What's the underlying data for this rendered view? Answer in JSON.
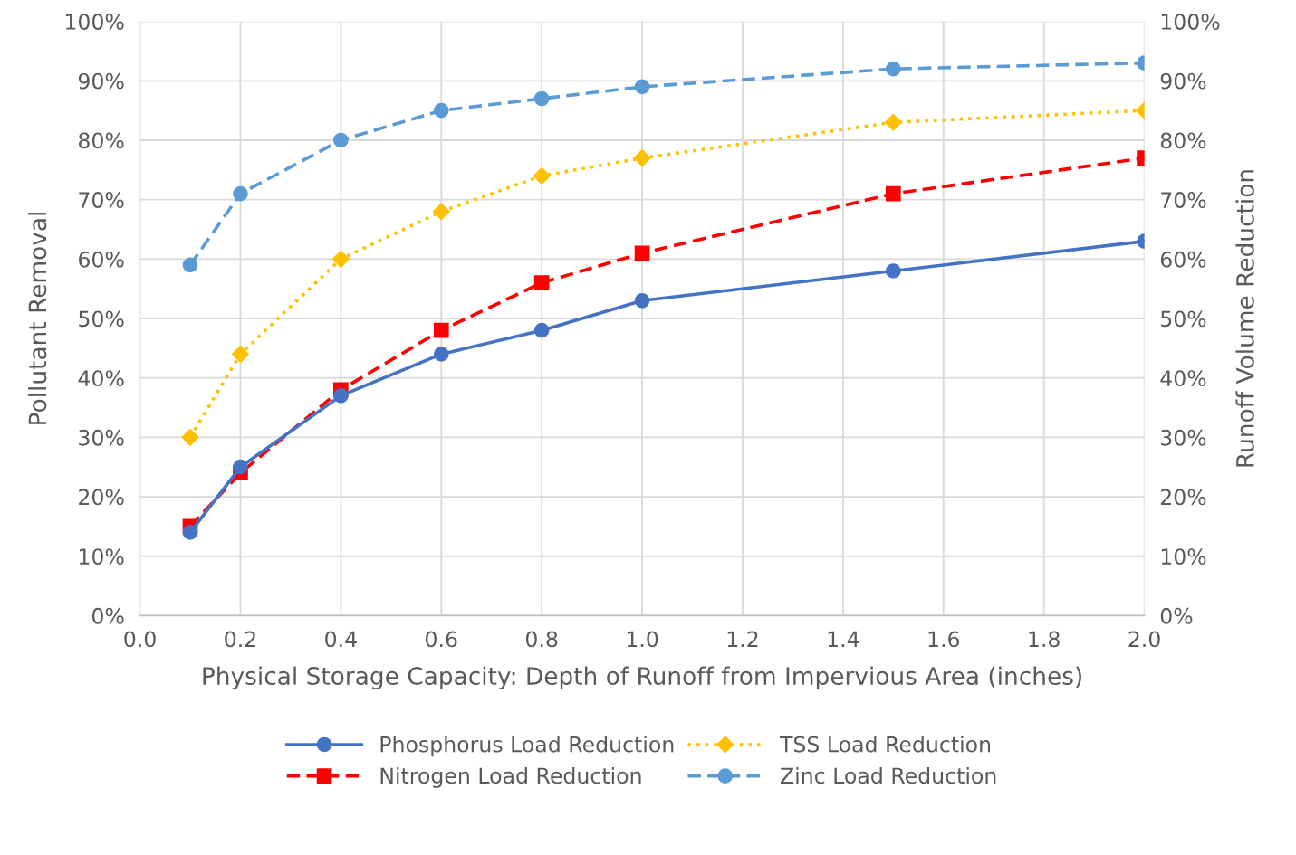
{
  "chart_data": {
    "type": "line",
    "xlabel": "Physical Storage Capacity: Depth of Runoff from Impervious Area (inches)",
    "ylabel": "Pollutant Removal",
    "y2label": "Runoff Volume Reduction",
    "x": [
      0.1,
      0.2,
      0.4,
      0.6,
      0.8,
      1.0,
      1.5,
      2.0
    ],
    "series": [
      {
        "name": "Phosphorus Load Reduction",
        "color": "#4472c4",
        "marker": "circle",
        "line_style": "solid",
        "values": [
          14,
          25,
          37,
          44,
          48,
          53,
          58,
          63
        ]
      },
      {
        "name": "Nitrogen Load Reduction",
        "color": "#ff0000",
        "marker": "square",
        "line_style": "dashed",
        "values": [
          15,
          24,
          38,
          48,
          56,
          61,
          71,
          77
        ]
      },
      {
        "name": "TSS Load Reduction",
        "color": "#ffc000",
        "marker": "diamond",
        "line_style": "dotted",
        "values": [
          30,
          44,
          60,
          68,
          74,
          77,
          83,
          85
        ]
      },
      {
        "name": "Zinc Load Reduction",
        "color": "#5b9bd5",
        "marker": "circle",
        "line_style": "dashed",
        "values": [
          59,
          71,
          80,
          85,
          87,
          89,
          92,
          93
        ]
      }
    ],
    "xlim": [
      0.0,
      2.0
    ],
    "xticks": [
      {
        "value": 0.0,
        "label": "0.0"
      },
      0.2,
      0.4,
      0.6,
      0.8,
      {
        "value": 1.0,
        "label": "1.0"
      },
      1.2,
      1.4,
      1.6,
      1.8,
      {
        "value": 2.0,
        "label": "2.0"
      }
    ],
    "ylim": [
      0,
      100
    ],
    "yticks": [
      {
        "value": 0,
        "label": "0%"
      },
      {
        "value": 10,
        "label": "10%"
      },
      {
        "value": 20,
        "label": "20%"
      },
      {
        "value": 30,
        "label": "30%"
      },
      {
        "value": 40,
        "label": "40%"
      },
      {
        "value": 50,
        "label": "50%"
      },
      {
        "value": 60,
        "label": "60%"
      },
      {
        "value": 70,
        "label": "70%"
      },
      {
        "value": 80,
        "label": "80%"
      },
      {
        "value": 90,
        "label": "90%"
      },
      {
        "value": 100,
        "label": "100%"
      }
    ],
    "y2lim": [
      0,
      100
    ],
    "y2ticks": [
      {
        "value": 0,
        "label": "0%"
      },
      {
        "value": 10,
        "label": "10%"
      },
      {
        "value": 20,
        "label": "20%"
      },
      {
        "value": 30,
        "label": "30%"
      },
      {
        "value": 40,
        "label": "40%"
      },
      {
        "value": 50,
        "label": "50%"
      },
      {
        "value": 60,
        "label": "60%"
      },
      {
        "value": 70,
        "label": "70%"
      },
      {
        "value": 80,
        "label": "80%"
      },
      {
        "value": 90,
        "label": "90%"
      },
      {
        "value": 100,
        "label": "100%"
      }
    ],
    "grid": true,
    "legend": "bottom"
  }
}
